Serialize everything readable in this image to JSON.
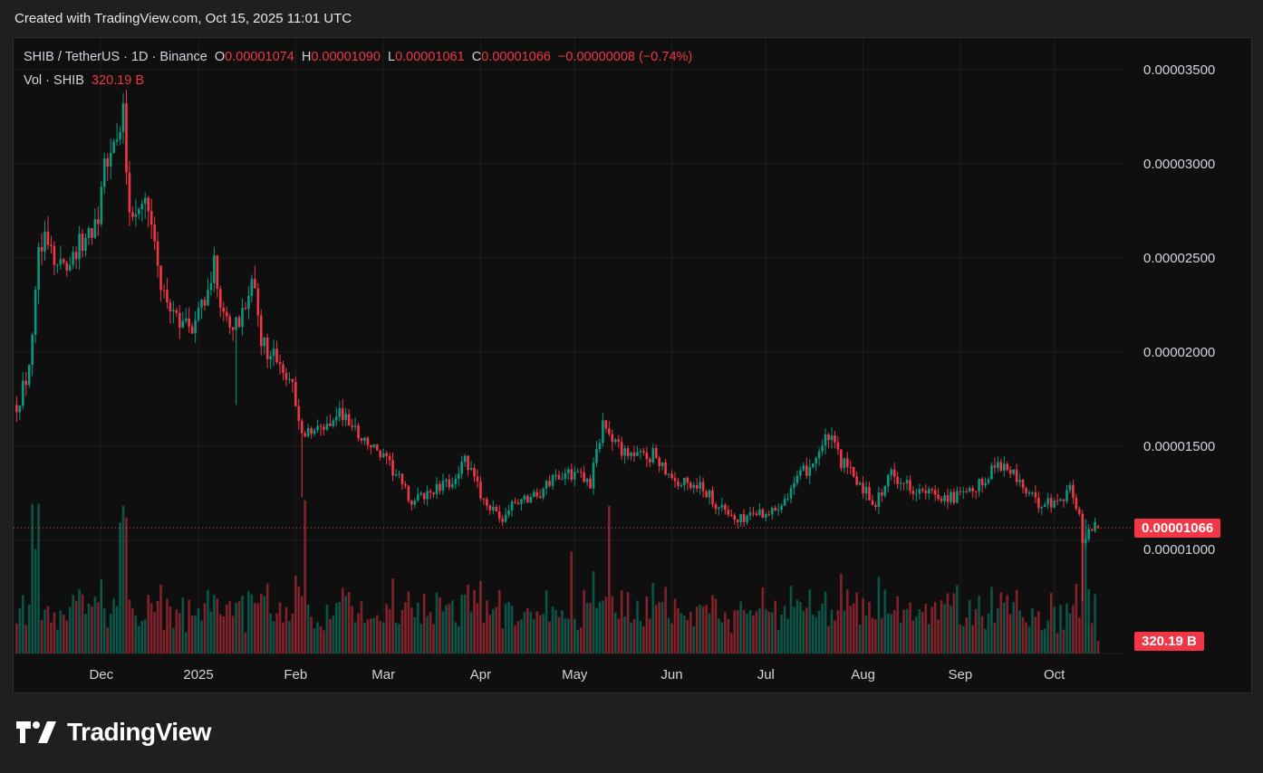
{
  "header": {
    "created": "Created with TradingView.com, Oct 15, 2025 11:01 UTC"
  },
  "legend": {
    "symbol": "SHIB / TetherUS · 1D · Binance",
    "o_label": "O",
    "o": "0.00001074",
    "h_label": "H",
    "h": "0.00001090",
    "l_label": "L",
    "l": "0.00001061",
    "c_label": "C",
    "c": "0.00001066",
    "change": "−0.00000008 (−0.74%)",
    "vol_label": "Vol · SHIB",
    "vol": "320.19 B"
  },
  "price_tag": "0.00001066",
  "volume_tag": "320.19 B",
  "logo": "TradingView",
  "colors": {
    "up": "#089981",
    "down": "#f23645",
    "bg": "#0f0f0f",
    "grid": "#1e1e1e"
  },
  "chart_data": {
    "type": "candlestick",
    "title": "SHIB / TetherUS · 1D · Binance",
    "ylim": [
      8.5e-06,
      3.67e-05
    ],
    "y_ticks": [
      "0.00003500",
      "0.00003000",
      "0.00002500",
      "0.00002000",
      "0.00001500",
      "0.00001000"
    ],
    "y_tick_values": [
      3.5e-05,
      3e-05,
      2.5e-05,
      2e-05,
      1.5e-05,
      1e-05
    ],
    "x_ticks": [
      {
        "label": "Dec",
        "date": "2024-12-01"
      },
      {
        "label": "2025",
        "date": "2025-01-01"
      },
      {
        "label": "Feb",
        "date": "2025-02-01"
      },
      {
        "label": "Mar",
        "date": "2025-03-01"
      },
      {
        "label": "Apr",
        "date": "2025-04-01"
      },
      {
        "label": "May",
        "date": "2025-05-01"
      },
      {
        "label": "Jun",
        "date": "2025-06-01"
      },
      {
        "label": "Jul",
        "date": "2025-07-01"
      },
      {
        "label": "Aug",
        "date": "2025-08-01"
      },
      {
        "label": "Sep",
        "date": "2025-09-01"
      },
      {
        "label": "Oct",
        "date": "2025-10-01"
      }
    ],
    "approx_close_anchors_e5": [
      [
        "2024-11-04",
        1.72
      ],
      [
        "2024-11-07",
        1.85
      ],
      [
        "2024-11-09",
        2.05
      ],
      [
        "2024-11-11",
        2.5
      ],
      [
        "2024-11-13",
        2.7
      ],
      [
        "2024-11-16",
        2.45
      ],
      [
        "2024-11-21",
        2.5
      ],
      [
        "2024-11-26",
        2.6
      ],
      [
        "2024-11-30",
        2.75
      ],
      [
        "2024-12-03",
        3.05
      ],
      [
        "2024-12-06",
        3.1
      ],
      [
        "2024-12-08",
        3.25
      ],
      [
        "2024-12-10",
        2.75
      ],
      [
        "2024-12-14",
        2.85
      ],
      [
        "2024-12-17",
        2.75
      ],
      [
        "2024-12-20",
        2.3
      ],
      [
        "2024-12-25",
        2.2
      ],
      [
        "2024-12-30",
        2.12
      ],
      [
        "2025-01-03",
        2.3
      ],
      [
        "2025-01-06",
        2.45
      ],
      [
        "2025-01-10",
        2.15
      ],
      [
        "2025-01-15",
        2.2
      ],
      [
        "2025-01-18",
        2.4
      ],
      [
        "2025-01-21",
        2.05
      ],
      [
        "2025-01-26",
        1.95
      ],
      [
        "2025-01-31",
        1.85
      ],
      [
        "2025-02-03",
        1.55
      ],
      [
        "2025-02-10",
        1.6
      ],
      [
        "2025-02-15",
        1.68
      ],
      [
        "2025-02-22",
        1.55
      ],
      [
        "2025-02-28",
        1.45
      ],
      [
        "2025-03-05",
        1.35
      ],
      [
        "2025-03-10",
        1.2
      ],
      [
        "2025-03-15",
        1.25
      ],
      [
        "2025-03-22",
        1.3
      ],
      [
        "2025-03-27",
        1.42
      ],
      [
        "2025-04-01",
        1.25
      ],
      [
        "2025-04-07",
        1.1
      ],
      [
        "2025-04-12",
        1.2
      ],
      [
        "2025-04-20",
        1.25
      ],
      [
        "2025-04-25",
        1.35
      ],
      [
        "2025-05-01",
        1.35
      ],
      [
        "2025-05-06",
        1.3
      ],
      [
        "2025-05-10",
        1.62
      ],
      [
        "2025-05-15",
        1.5
      ],
      [
        "2025-05-20",
        1.45
      ],
      [
        "2025-05-27",
        1.45
      ],
      [
        "2025-06-03",
        1.3
      ],
      [
        "2025-06-10",
        1.3
      ],
      [
        "2025-06-15",
        1.2
      ],
      [
        "2025-06-22",
        1.1
      ],
      [
        "2025-06-27",
        1.15
      ],
      [
        "2025-07-03",
        1.15
      ],
      [
        "2025-07-10",
        1.3
      ],
      [
        "2025-07-15",
        1.4
      ],
      [
        "2025-07-21",
        1.55
      ],
      [
        "2025-07-25",
        1.42
      ],
      [
        "2025-07-31",
        1.3
      ],
      [
        "2025-08-05",
        1.2
      ],
      [
        "2025-08-10",
        1.35
      ],
      [
        "2025-08-15",
        1.3
      ],
      [
        "2025-08-20",
        1.25
      ],
      [
        "2025-08-30",
        1.23
      ],
      [
        "2025-09-05",
        1.25
      ],
      [
        "2025-09-13",
        1.42
      ],
      [
        "2025-09-18",
        1.35
      ],
      [
        "2025-09-25",
        1.2
      ],
      [
        "2025-10-01",
        1.2
      ],
      [
        "2025-10-06",
        1.27
      ],
      [
        "2025-10-09",
        1.15
      ],
      [
        "2025-10-10",
        0.97
      ],
      [
        "2025-10-12",
        1.05
      ],
      [
        "2025-10-14",
        1.074
      ],
      [
        "2025-10-15",
        1.066
      ]
    ],
    "last_volume": "320.19 B"
  }
}
